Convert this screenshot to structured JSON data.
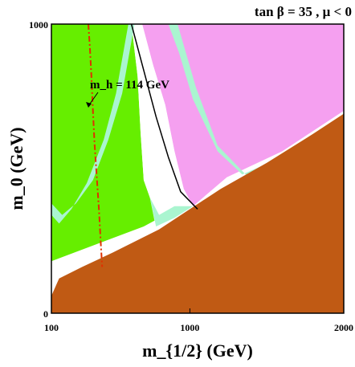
{
  "chart_data": {
    "type": "area",
    "title": "tan β = 35 ,  μ < 0",
    "xlabel": "m_{1/2} (GeV)",
    "ylabel": "m_0 (GeV)",
    "x_scale": "linear",
    "xlim": [
      100,
      2000
    ],
    "ylim": [
      0,
      1000
    ],
    "x_ticks": [
      "100",
      "1000",
      "2000"
    ],
    "y_ticks": [
      "0",
      "1000"
    ],
    "annotation": "m_h = 114 GeV",
    "colors": {
      "excluded_green": "#66ee00",
      "excluded_pink": "#f5a0f0",
      "stau_lsp_brown": "#c05a14",
      "relic_band": "#aaf5d0",
      "allowed": "#ffffff",
      "mh_line": "#e03000"
    },
    "regions": {
      "green": [
        [
          100,
          1000
        ],
        [
          620,
          1000
        ],
        [
          660,
          820
        ],
        [
          680,
          620
        ],
        [
          700,
          460
        ],
        [
          740,
          400
        ],
        [
          770,
          320
        ],
        [
          700,
          300
        ],
        [
          100,
          180
        ]
      ],
      "pink": [
        [
          690,
          1000
        ],
        [
          2000,
          1000
        ],
        [
          2000,
          700
        ],
        [
          1600,
          560
        ],
        [
          1240,
          470
        ],
        [
          1020,
          370
        ],
        [
          960,
          430
        ],
        [
          900,
          560
        ],
        [
          840,
          720
        ],
        [
          760,
          860
        ]
      ],
      "brown": [
        [
          100,
          60
        ],
        [
          150,
          120
        ],
        [
          300,
          160
        ],
        [
          500,
          210
        ],
        [
          800,
          290
        ],
        [
          1000,
          360
        ],
        [
          1200,
          430
        ],
        [
          1500,
          520
        ],
        [
          1800,
          620
        ],
        [
          2000,
          690
        ],
        [
          2000,
          0
        ],
        [
          100,
          0
        ]
      ],
      "white_left": [
        [
          620,
          1000
        ],
        [
          690,
          1000
        ],
        [
          760,
          860
        ],
        [
          840,
          720
        ],
        [
          900,
          560
        ],
        [
          960,
          430
        ],
        [
          1020,
          370
        ],
        [
          900,
          370
        ],
        [
          800,
          340
        ],
        [
          740,
          400
        ],
        [
          700,
          460
        ],
        [
          680,
          620
        ],
        [
          660,
          820
        ]
      ],
      "relic_band_lower": [
        [
          100,
          340
        ],
        [
          150,
          310
        ],
        [
          230,
          360
        ],
        [
          330,
          450
        ],
        [
          440,
          600
        ],
        [
          520,
          760
        ],
        [
          600,
          1000
        ],
        [
          640,
          1000
        ],
        [
          560,
          760
        ],
        [
          470,
          600
        ],
        [
          370,
          460
        ],
        [
          260,
          380
        ],
        [
          170,
          340
        ],
        [
          100,
          380
        ]
      ],
      "relic_band_upper": [
        [
          860,
          1000
        ],
        [
          920,
          1000
        ],
        [
          1040,
          780
        ],
        [
          1180,
          580
        ],
        [
          1380,
          470
        ],
        [
          1600,
          540
        ],
        [
          1340,
          480
        ],
        [
          1180,
          560
        ],
        [
          1020,
          740
        ],
        [
          930,
          900
        ]
      ],
      "relic_band_bottom": [
        [
          740,
          400
        ],
        [
          800,
          340
        ],
        [
          900,
          370
        ],
        [
          1020,
          370
        ],
        [
          900,
          330
        ],
        [
          780,
          300
        ]
      ]
    },
    "series": [
      {
        "name": "m_h = 114 GeV",
        "style": "dash-dot",
        "x": [
          340,
          350,
          360,
          370,
          380,
          395,
          410,
          420,
          430
        ],
        "y": [
          1000,
          920,
          820,
          700,
          590,
          470,
          350,
          250,
          160
        ]
      },
      {
        "name": "",
        "style": "solid",
        "x": [
          620,
          700,
          780,
          860,
          940,
          1050
        ],
        "y": [
          1000,
          840,
          680,
          540,
          420,
          360
        ]
      }
    ]
  }
}
